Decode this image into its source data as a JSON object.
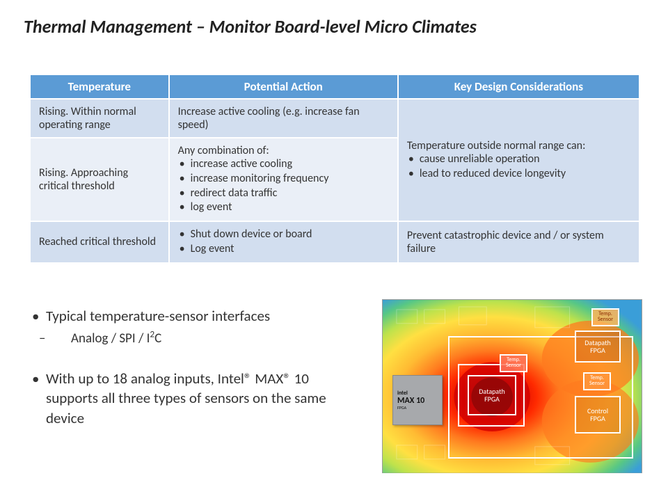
{
  "title": "Thermal Management – Monitor Board-level Micro Climates",
  "table": {
    "headers": [
      "Temperature",
      "Potential Action",
      "Key Design Considerations"
    ],
    "rows": [
      {
        "temperature": "Rising. Within normal operating range",
        "action_text": "Increase active cooling (e.g. increase fan speed)"
      },
      {
        "temperature": "Rising. Approaching critical threshold",
        "action_lead": "Any combination of:",
        "action_items": [
          "increase active cooling",
          "increase monitoring frequency",
          "redirect data traffic",
          "log event"
        ]
      },
      {
        "temperature": "Reached critical threshold",
        "action_items": [
          "Shut down device or board",
          "Log event"
        ],
        "consideration": "Prevent catastrophic device and / or system failure"
      }
    ],
    "merged_consideration": {
      "lead": "Temperature outside normal range can:",
      "items": [
        "cause unreliable operation",
        "lead to reduced device longevity"
      ]
    },
    "header_bg": "#5b9bd5",
    "row_bg_odd": "#d2deef",
    "row_bg_even": "#eaeff7"
  },
  "bullets": {
    "item1": "Typical temperature-sensor interfaces",
    "item1_sub_prefix": "Analog / SPI / I",
    "item1_sub_sup": "2",
    "item1_sub_suffix": "C",
    "item2": "With up to 18 analog inputs, Intel® MAX® 10 supports all three types of sensors on the same device"
  },
  "diagram": {
    "chip_label_1": "intel",
    "chip_label_2": "MAX 10",
    "chip_label_3": "FPGA",
    "fpga_dp": "Datapath\nFPGA",
    "fpga_ctl": "Control\nFPGA",
    "sensor_label": "Temp.\nSensor",
    "gradient_colors": [
      "#3a9ed8",
      "#57c785",
      "#bde24c",
      "#ffe042",
      "#ffbb33",
      "#ff7a1f",
      "#ff2a00",
      "#d10000",
      "#8b0000"
    ]
  }
}
